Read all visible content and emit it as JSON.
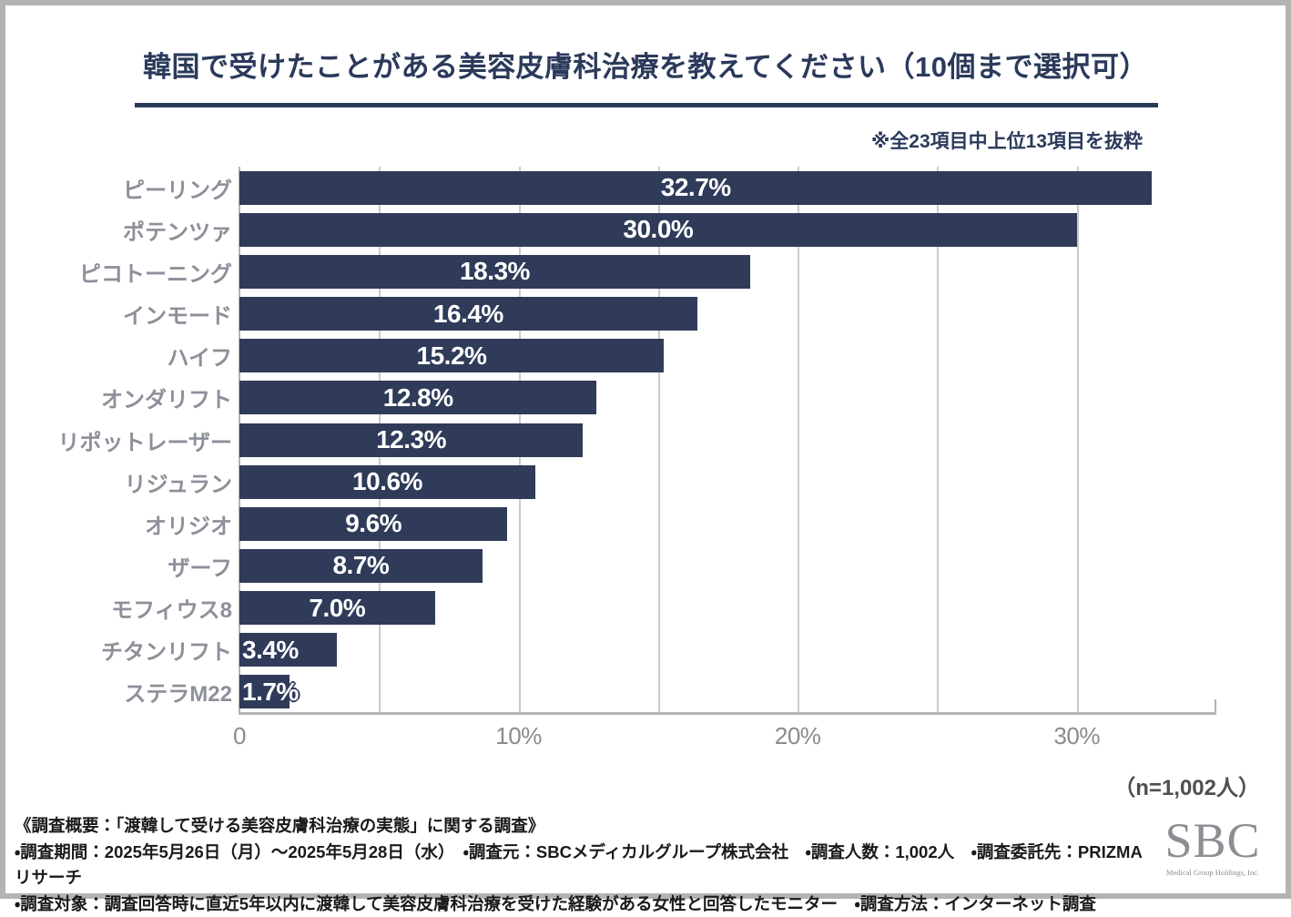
{
  "title": "韓国で受けたことがある美容皮膚科治療を教えてください（10個まで選択可）",
  "note": "※全23項目中上位13項目を抜粋",
  "n_label": "（n=1,002人）",
  "colors": {
    "bar_navy": "#2f3b59",
    "title_navy": "#2b3a5b",
    "category_label_gray": "#8d909a",
    "tick_gray": "#8a8a8a",
    "gridline_gray": "#cbcbcb",
    "axis_gray": "#b4b4b4",
    "frame_border_gray": "#b3b3b3",
    "footer_text": "#1a1a1a",
    "logo_gray": "#8b8e93"
  },
  "chart_data": {
    "type": "bar",
    "orientation": "horizontal",
    "title": "韓国で受けたことがある美容皮膚科治療を教えてください（10個まで選択可）",
    "categories": [
      "ピーリング",
      "ポテンツァ",
      "ピコトーニング",
      "インモード",
      "ハイフ",
      "オンダリフト",
      "リポットレーザー",
      "リジュラン",
      "オリジオ",
      "ザーフ",
      "モフィウス8",
      "チタンリフト",
      "ステラM22"
    ],
    "values": [
      32.7,
      30.0,
      18.3,
      16.4,
      15.2,
      12.8,
      12.3,
      10.6,
      9.6,
      8.7,
      7.0,
      3.4,
      1.7
    ],
    "value_labels": [
      "32.7%",
      "30.0%",
      "18.3%",
      "16.4%",
      "15.2%",
      "12.8%",
      "12.3%",
      "10.6%",
      "9.6%",
      "8.7%",
      "7.0%",
      "3.4%",
      "1.7%"
    ],
    "xlabel": "",
    "ylabel": "",
    "xlim": [
      0,
      35
    ],
    "x_ticks": [
      {
        "value": 0,
        "label": "0"
      },
      {
        "value": 10,
        "label": "10%"
      },
      {
        "value": 20,
        "label": "20%"
      },
      {
        "value": 30,
        "label": "30%"
      }
    ],
    "gridline_values": [
      5,
      10,
      15,
      20,
      25,
      30
    ],
    "grid": true,
    "legend": false
  },
  "footer": {
    "line1": "《調査概要：「渡韓して受ける美容皮膚科治療の実態」に関する調査》",
    "line2": "・調査期間：2025年5月26日（月）～2025年5月28日（水）　・調査元：SBCメディカルグループ株式会社　・調査人数：1,002人　・調査委託先：PRIZMAリサーチ",
    "line3": "・調査対象：調査回答時に直近5年以内に渡韓して美容皮膚科治療を受けた経験がある女性と回答したモニター　・調査方法：インターネット調査"
  },
  "logo": {
    "text": "SBC",
    "subtext": "Medical Group Holdings, Inc."
  }
}
